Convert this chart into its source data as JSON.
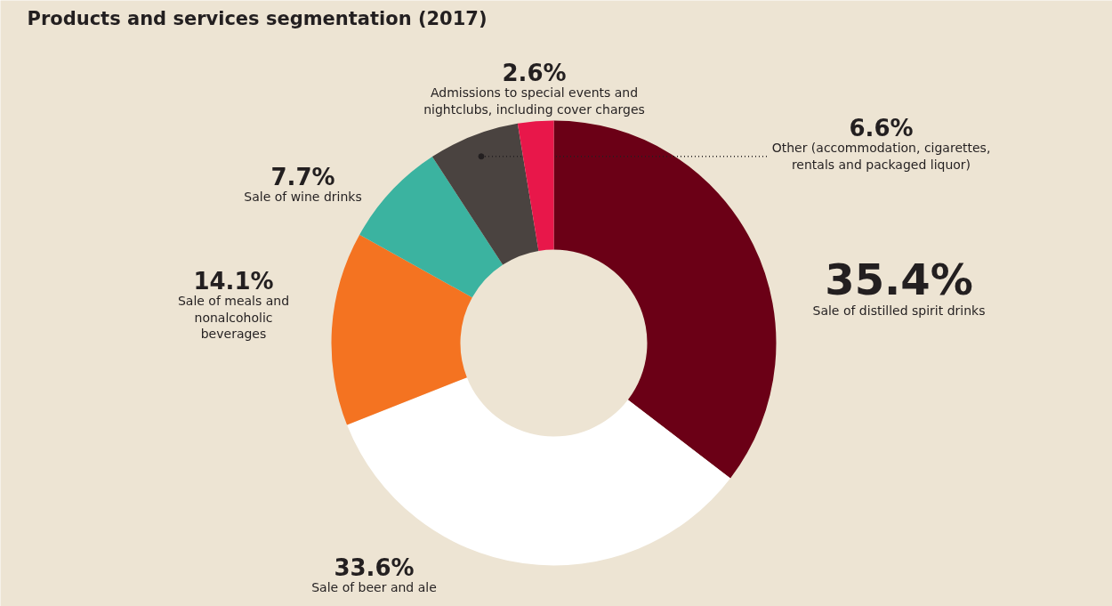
{
  "chart_data": {
    "type": "donut",
    "title": "Products and services segmentation (2017)",
    "categories": [
      "Sale of distilled spirit drinks",
      "Sale of beer and ale",
      "Sale of meals and nonalcoholic beverages",
      "Sale of wine drinks",
      "Other (accommodation, cigarettes, rentals and packaged liquor)",
      "Admissions to special events and nightclubs, including cover charges"
    ],
    "values": [
      35.4,
      33.6,
      14.1,
      7.7,
      6.6,
      2.6
    ],
    "value_labels": [
      "35.4%",
      "33.6%",
      "14.1%",
      "7.7%",
      "6.6%",
      "2.6%"
    ],
    "colors": [
      "#6b0016",
      "#ffffff",
      "#f47321",
      "#3bb3a0",
      "#4a4340",
      "#e8174a"
    ]
  }
}
